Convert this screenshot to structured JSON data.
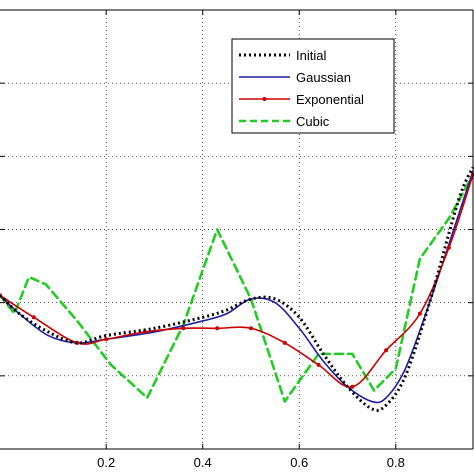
{
  "chart_data": {
    "type": "line",
    "title": "",
    "xlabel": "",
    "ylabel": "",
    "xlim": [
      -0.02,
      0.96
    ],
    "ylim": [
      0,
      6
    ],
    "xticks": [
      0.2,
      0.4,
      0.6,
      0.8
    ],
    "xtick_labels": [
      "0.2",
      "0.4",
      "0.6",
      "0.8"
    ],
    "yticks": [
      1,
      2,
      3,
      4,
      5
    ],
    "grid": true,
    "legend_position": "top-right",
    "series": [
      {
        "name": "Initial",
        "color": "#000000",
        "style": "dotted",
        "x": [
          -0.02,
          0.02,
          0.08,
          0.14,
          0.2,
          0.3,
          0.4,
          0.45,
          0.5,
          0.55,
          0.6,
          0.65,
          0.7,
          0.75,
          0.78,
          0.82,
          0.87,
          0.93,
          0.96
        ],
        "y": [
          2.1,
          1.85,
          1.6,
          1.45,
          1.55,
          1.65,
          1.8,
          1.9,
          2.05,
          2.05,
          1.8,
          1.3,
          0.85,
          0.55,
          0.6,
          1.0,
          2.0,
          3.4,
          3.85
        ]
      },
      {
        "name": "Gaussian",
        "color": "#1f1fa0",
        "style": "solid",
        "x": [
          -0.02,
          0.02,
          0.08,
          0.14,
          0.2,
          0.3,
          0.4,
          0.45,
          0.5,
          0.55,
          0.6,
          0.65,
          0.7,
          0.75,
          0.78,
          0.82,
          0.87,
          0.93,
          0.96
        ],
        "y": [
          2.1,
          1.85,
          1.55,
          1.45,
          1.5,
          1.6,
          1.75,
          1.85,
          2.05,
          2.0,
          1.65,
          1.2,
          0.85,
          0.65,
          0.7,
          1.1,
          2.0,
          3.2,
          3.8
        ]
      },
      {
        "name": "Exponential",
        "color": "#cc0000",
        "style": "solid-markers",
        "x": [
          -0.02,
          0.05,
          0.14,
          0.2,
          0.28,
          0.36,
          0.43,
          0.5,
          0.57,
          0.64,
          0.71,
          0.78,
          0.85,
          0.91,
          0.96
        ],
        "y": [
          2.1,
          1.8,
          1.45,
          1.5,
          1.6,
          1.65,
          1.65,
          1.65,
          1.45,
          1.15,
          0.85,
          1.35,
          1.85,
          2.75,
          3.75
        ]
      },
      {
        "name": "Cubic",
        "color": "#22cc22",
        "style": "dashed",
        "x": [
          -0.02,
          0.01,
          0.04,
          0.075,
          0.14,
          0.21,
          0.285,
          0.36,
          0.43,
          0.5,
          0.57,
          0.64,
          0.71,
          0.755,
          0.8,
          0.85,
          0.91,
          0.96
        ],
        "y": [
          2.1,
          1.85,
          2.35,
          2.25,
          1.75,
          1.15,
          0.7,
          1.7,
          3.0,
          2.05,
          0.65,
          1.3,
          1.3,
          0.8,
          1.1,
          2.6,
          3.15,
          3.75
        ]
      }
    ]
  }
}
